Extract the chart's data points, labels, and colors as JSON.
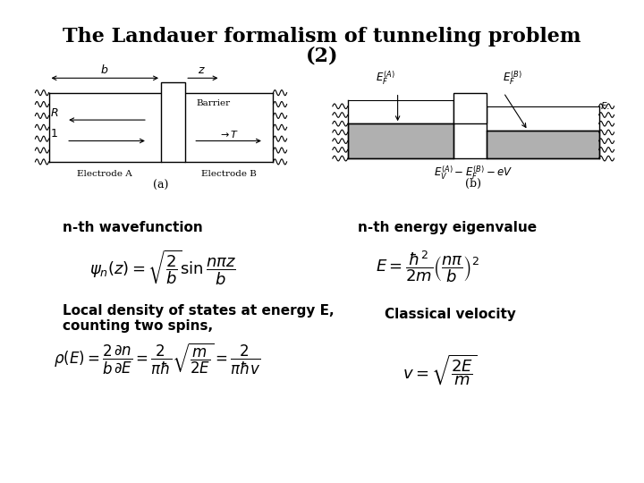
{
  "title_line1": "The Landauer formalism of tunneling problem",
  "title_line2": "(2)",
  "label_nth_wave": "n-th wavefunction",
  "label_nth_energy": "n-th energy eigenvalue",
  "label_ldos": "Local density of states at energy E,\ncounting two spins,",
  "label_classical": "Classical velocity",
  "formula_wave": "$\\psi_n(z) = \\sqrt{\\dfrac{2}{b}}\\sin\\dfrac{n\\pi z}{b}$",
  "formula_energy": "$E = \\dfrac{\\hbar^2}{2m}\\left(\\dfrac{n\\pi}{b}\\right)^2$",
  "formula_ldos": "$\\rho(E) = \\dfrac{2}{b}\\dfrac{\\partial n}{\\partial E} = \\dfrac{2}{\\pi\\hbar}\\sqrt{\\dfrac{m}{2E}} = \\dfrac{2}{\\pi\\hbar v}$",
  "formula_classical": "$v = \\sqrt{\\dfrac{2E}{m}}$",
  "bg_color": "#ffffff",
  "text_color": "#000000",
  "gray_color": "#b0b0b0",
  "title_fontsize": 16,
  "label_fontsize": 11,
  "formula_fontsize": 12
}
